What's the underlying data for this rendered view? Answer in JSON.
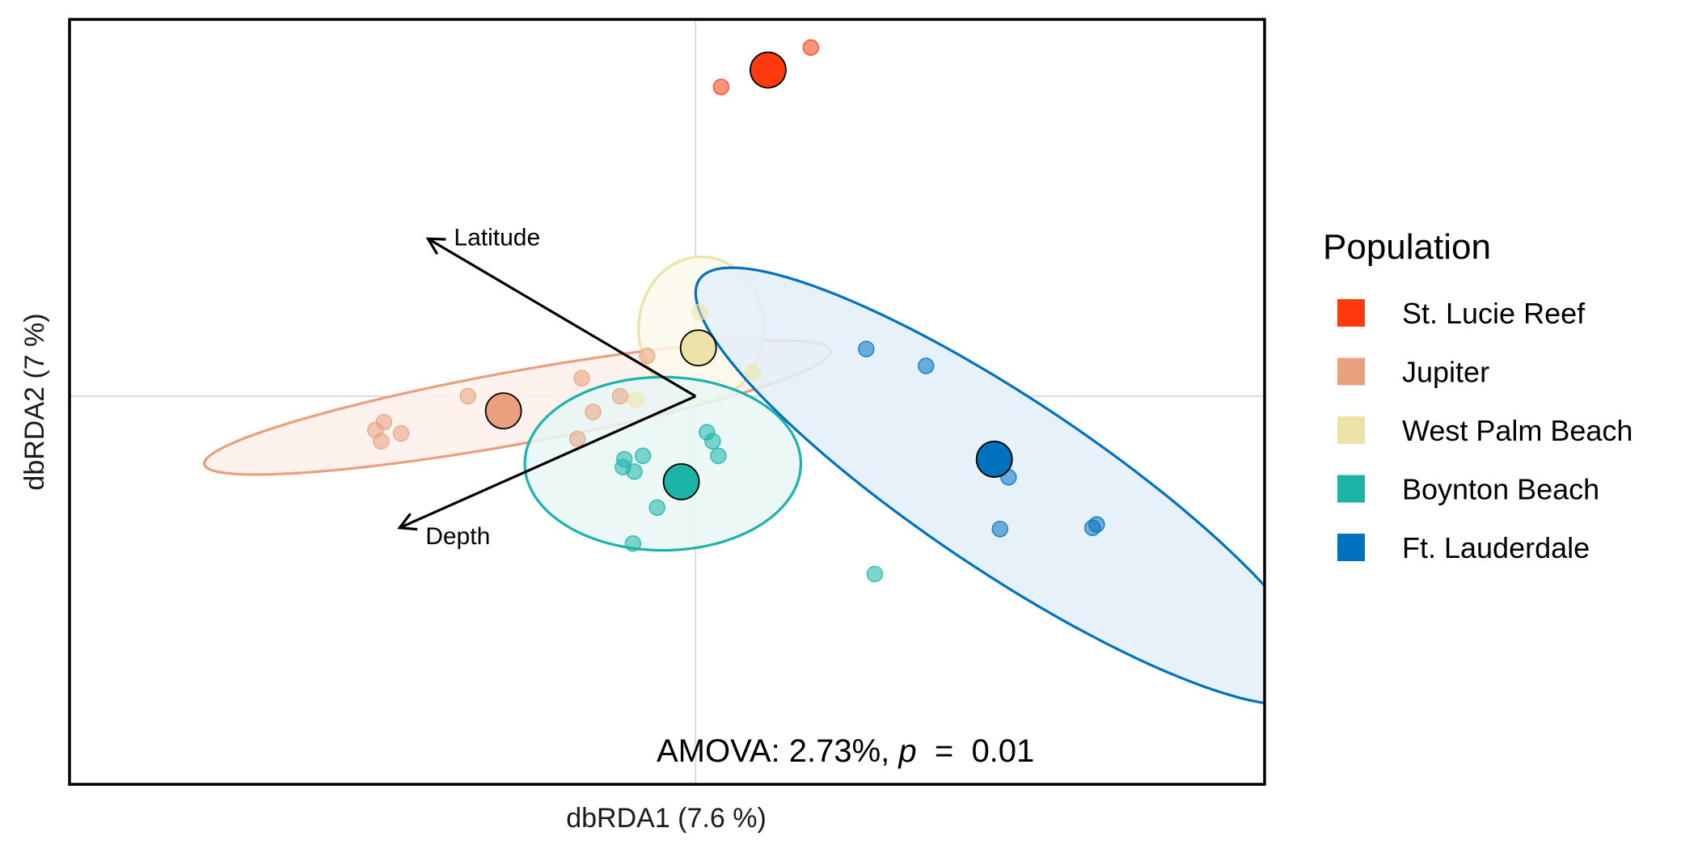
{
  "chart_data": {
    "type": "scatter",
    "xlabel": "dbRDA1 (7.6 %)",
    "ylabel": "dbRDA2 (7 %)",
    "xlim": [
      -4.4,
      4.0
    ],
    "ylim": [
      -3.45,
      3.35
    ],
    "grid": false,
    "reference_lines": {
      "x": 0,
      "y": 0
    },
    "legend": {
      "title": "Population",
      "placement": "right"
    },
    "annotation": {
      "prefix": "AMOVA: 2.73%, ",
      "p_symbol": "p",
      "suffix": "  =  0.01"
    },
    "series": [
      {
        "name": "St. Lucie Reef",
        "color": "#FF3A0E",
        "centroid": [
          0.51,
          2.9
        ],
        "points": [
          [
            0.81,
            3.1
          ],
          [
            0.18,
            2.75
          ]
        ],
        "ellipse": null
      },
      {
        "name": "Jupiter",
        "color": "#E8A07E",
        "centroid": [
          -1.35,
          -0.13
        ],
        "points": [
          [
            -2.25,
            -0.3
          ],
          [
            -2.21,
            -0.4
          ],
          [
            -2.07,
            -0.33
          ],
          [
            -2.19,
            -0.23
          ],
          [
            -1.6,
            0.0
          ],
          [
            -0.8,
            0.16
          ],
          [
            -0.53,
            0.0
          ],
          [
            -0.72,
            -0.14
          ],
          [
            -0.83,
            -0.38
          ],
          [
            -0.34,
            0.36
          ]
        ],
        "ellipse": {
          "center": [
            -1.25,
            -0.1
          ],
          "semi_axes": [
            2.26,
            0.32
          ],
          "angle_deg": 13,
          "fill": "#FDF0EA"
        }
      },
      {
        "name": "West Palm Beach",
        "color": "#EDE3A8",
        "centroid": [
          0.02,
          0.43
        ],
        "points": [
          [
            0.03,
            0.75
          ],
          [
            0.4,
            0.21
          ],
          [
            -0.42,
            -0.03
          ]
        ],
        "ellipse": {
          "center": [
            0.04,
            0.6
          ],
          "semi_axes": [
            0.44,
            0.64
          ],
          "angle_deg": 0,
          "fill": "#FBF9EB"
        }
      },
      {
        "name": "Boynton Beach",
        "color": "#1CB3A8",
        "centroid": [
          -0.1,
          -0.76
        ],
        "points": [
          [
            0.08,
            -0.32
          ],
          [
            0.12,
            -0.4
          ],
          [
            0.16,
            -0.53
          ],
          [
            -0.37,
            -0.53
          ],
          [
            -0.5,
            -0.56
          ],
          [
            -0.51,
            -0.63
          ],
          [
            -0.43,
            -0.67
          ],
          [
            -0.27,
            -0.99
          ],
          [
            -0.44,
            -1.31
          ],
          [
            1.26,
            -1.58
          ]
        ],
        "ellipse": {
          "center": [
            -0.23,
            -0.6
          ],
          "semi_axes": [
            0.97,
            0.77
          ],
          "angle_deg": 0,
          "fill": "#E8F7F5"
        }
      },
      {
        "name": "Ft. Lauderdale",
        "color": "#0072BD",
        "centroid": [
          2.1,
          -0.56
        ],
        "points": [
          [
            1.2,
            0.42
          ],
          [
            1.62,
            0.27
          ],
          [
            2.2,
            -0.72
          ],
          [
            2.82,
            -1.14
          ],
          [
            2.79,
            -1.17
          ],
          [
            2.14,
            -1.18
          ]
        ],
        "ellipse": {
          "center": [
            2.2,
            -0.8
          ],
          "semi_axes": [
            2.85,
            0.7
          ],
          "angle_deg": -41,
          "fill": "#E3EFF8"
        }
      }
    ],
    "vectors": [
      {
        "name": "Latitude",
        "end": [
          -1.88,
          1.4
        ]
      },
      {
        "name": "Depth",
        "end": [
          -2.08,
          -1.17
        ]
      }
    ]
  }
}
